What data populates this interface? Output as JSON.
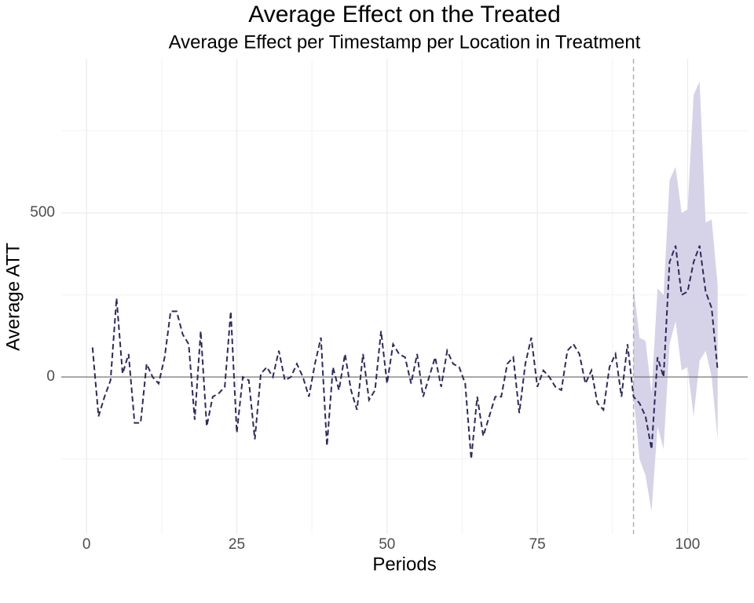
{
  "chart_data": {
    "type": "line",
    "title": "Average Effect on the Treated",
    "subtitle": "Average Effect per Timestamp per Location in Treatment",
    "x_label": "Periods",
    "y_label": "Average ATT",
    "xlim": [
      -4.2,
      110
    ],
    "ylim": [
      -478,
      969
    ],
    "xticks": [
      0,
      25,
      50,
      75,
      100
    ],
    "yticks": [
      0,
      500
    ],
    "x_minor_grid": [
      12.5,
      37.5,
      62.5,
      87.5
    ],
    "y_minor_grid": [
      -250,
      250,
      750
    ],
    "grid": true,
    "hline": 0,
    "vline": 91,
    "series": [
      {
        "color": "#2d2a5e",
        "x": [
          1,
          2,
          3,
          4,
          5,
          6,
          7,
          8,
          9,
          10,
          11,
          12,
          13,
          14,
          15,
          16,
          17,
          18,
          19,
          20,
          21,
          22,
          23,
          24,
          25,
          26,
          27,
          28,
          29,
          30,
          31,
          32,
          33,
          34,
          35,
          36,
          37,
          38,
          39,
          40,
          41,
          42,
          43,
          44,
          45,
          46,
          47,
          48,
          49,
          50,
          51,
          52,
          53,
          54,
          55,
          56,
          57,
          58,
          59,
          60,
          61,
          62,
          63,
          64,
          65,
          66,
          67,
          68,
          69,
          70,
          71,
          72,
          73,
          74,
          75,
          76,
          77,
          78,
          79,
          80,
          81,
          82,
          83,
          84,
          85,
          86,
          87,
          88,
          89,
          90,
          91,
          92,
          93,
          94,
          95,
          96,
          97,
          98,
          99,
          100,
          101,
          102,
          103,
          104,
          105
        ],
        "values": [
          90,
          -120,
          -60,
          -10,
          240,
          10,
          70,
          -140,
          -140,
          40,
          0,
          -20,
          60,
          200,
          200,
          130,
          100,
          -130,
          140,
          -150,
          -60,
          -50,
          -30,
          200,
          -170,
          0,
          -10,
          -190,
          10,
          30,
          0,
          80,
          -10,
          0,
          40,
          0,
          -60,
          40,
          120,
          -210,
          30,
          -40,
          70,
          -40,
          -100,
          70,
          -70,
          -40,
          140,
          -20,
          100,
          70,
          60,
          -20,
          70,
          -60,
          0,
          60,
          -30,
          80,
          40,
          30,
          -20,
          -250,
          -60,
          -180,
          -120,
          -60,
          -60,
          40,
          60,
          -110,
          40,
          120,
          -30,
          20,
          0,
          -30,
          -40,
          80,
          100,
          70,
          -20,
          20,
          -80,
          -100,
          30,
          70,
          -60,
          100,
          -60,
          -80,
          -120,
          -220,
          60,
          0,
          350,
          400,
          250,
          260,
          350,
          400,
          260,
          210,
          20
        ]
      }
    ],
    "band": {
      "color": "#d6d3e8",
      "x": [
        91,
        92,
        93,
        94,
        95,
        96,
        97,
        98,
        99,
        100,
        101,
        102,
        103,
        104,
        105
      ],
      "lower": [
        -60,
        -250,
        -300,
        -410,
        -150,
        -220,
        100,
        170,
        20,
        30,
        -120,
        50,
        80,
        0,
        -190
      ],
      "upper": [
        280,
        120,
        110,
        -50,
        270,
        250,
        600,
        640,
        500,
        510,
        860,
        900,
        470,
        480,
        280
      ]
    }
  }
}
